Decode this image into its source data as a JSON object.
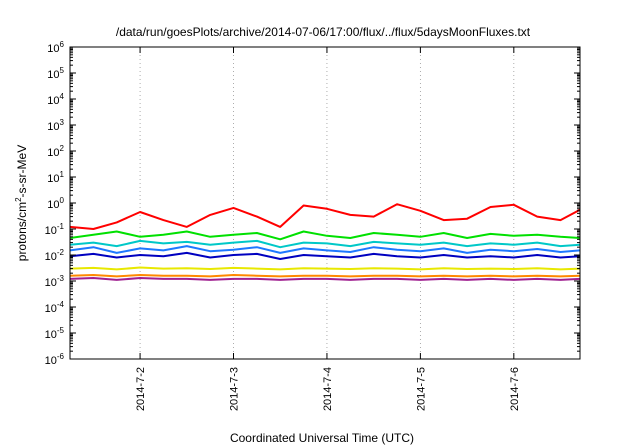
{
  "chart_data": {
    "type": "line",
    "title": "/data/run/goesPlots/archive/2014-07-06/17:00/flux/../flux/5daysMoonFluxes.txt",
    "xlabel": "Coordinated Universal Time (UTC)",
    "ylabel": "protons/cm²-s-sr-MeV",
    "ylabel_parts": {
      "pre": "protons/cm",
      "sup": "2",
      "post": "-s-sr-MeV"
    },
    "y_scale": "log",
    "ylim": [
      1e-06,
      1000000.0
    ],
    "y_ticks": [
      {
        "base": "10",
        "exp": "-6",
        "value": 1e-06
      },
      {
        "base": "10",
        "exp": "-5",
        "value": 1e-05
      },
      {
        "base": "10",
        "exp": "-4",
        "value": 0.0001
      },
      {
        "base": "10",
        "exp": "-3",
        "value": 0.001
      },
      {
        "base": "10",
        "exp": "-2",
        "value": 0.01
      },
      {
        "base": "10",
        "exp": "-1",
        "value": 0.1
      },
      {
        "base": "10",
        "exp": "0",
        "value": 1.0
      },
      {
        "base": "10",
        "exp": "1",
        "value": 10.0
      },
      {
        "base": "10",
        "exp": "2",
        "value": 100.0
      },
      {
        "base": "10",
        "exp": "3",
        "value": 1000.0
      },
      {
        "base": "10",
        "exp": "4",
        "value": 10000.0
      },
      {
        "base": "10",
        "exp": "5",
        "value": 100000.0
      },
      {
        "base": "10",
        "exp": "6",
        "value": 1000000.0
      }
    ],
    "xlim": [
      "2014-07-01T06:00",
      "2014-07-06T17:00"
    ],
    "x_ticks": [
      "2014-7-2",
      "2014-7-3",
      "2014-7-4",
      "2014-7-5",
      "2014-7-6"
    ],
    "grid": true,
    "x": [
      "2014-07-01T06:00",
      "2014-07-01T12:00",
      "2014-07-01T18:00",
      "2014-07-02T00:00",
      "2014-07-02T06:00",
      "2014-07-02T12:00",
      "2014-07-02T18:00",
      "2014-07-03T00:00",
      "2014-07-03T06:00",
      "2014-07-03T12:00",
      "2014-07-03T18:00",
      "2014-07-04T00:00",
      "2014-07-04T06:00",
      "2014-07-04T12:00",
      "2014-07-04T18:00",
      "2014-07-05T00:00",
      "2014-07-05T06:00",
      "2014-07-05T12:00",
      "2014-07-05T18:00",
      "2014-07-06T00:00",
      "2014-07-06T06:00",
      "2014-07-06T12:00",
      "2014-07-06T17:00"
    ],
    "series": [
      {
        "color": "#ff0000",
        "values": [
          0.12,
          0.1,
          0.18,
          0.45,
          0.22,
          0.12,
          0.35,
          0.65,
          0.3,
          0.12,
          0.8,
          0.6,
          0.35,
          0.3,
          0.9,
          0.5,
          0.22,
          0.25,
          0.7,
          0.85,
          0.3,
          0.22,
          0.55
        ]
      },
      {
        "color": "#00e000",
        "values": [
          0.045,
          0.06,
          0.08,
          0.05,
          0.06,
          0.08,
          0.05,
          0.06,
          0.07,
          0.04,
          0.08,
          0.055,
          0.045,
          0.07,
          0.06,
          0.05,
          0.07,
          0.045,
          0.065,
          0.055,
          0.06,
          0.05,
          0.045
        ]
      },
      {
        "color": "#00c8c8",
        "values": [
          0.025,
          0.03,
          0.022,
          0.035,
          0.028,
          0.032,
          0.025,
          0.03,
          0.035,
          0.02,
          0.03,
          0.028,
          0.022,
          0.032,
          0.028,
          0.025,
          0.03,
          0.022,
          0.028,
          0.025,
          0.03,
          0.022,
          0.025
        ]
      },
      {
        "color": "#1e78ff",
        "values": [
          0.015,
          0.02,
          0.012,
          0.018,
          0.015,
          0.022,
          0.014,
          0.016,
          0.02,
          0.012,
          0.018,
          0.015,
          0.013,
          0.02,
          0.016,
          0.014,
          0.018,
          0.012,
          0.016,
          0.014,
          0.017,
          0.013,
          0.015
        ]
      },
      {
        "color": "#0000c0",
        "values": [
          0.009,
          0.011,
          0.008,
          0.01,
          0.009,
          0.012,
          0.008,
          0.01,
          0.011,
          0.007,
          0.01,
          0.009,
          0.008,
          0.011,
          0.009,
          0.008,
          0.01,
          0.008,
          0.009,
          0.008,
          0.01,
          0.008,
          0.009
        ]
      },
      {
        "color": "#e8e800",
        "values": [
          0.003,
          0.0032,
          0.0028,
          0.0033,
          0.003,
          0.0031,
          0.0029,
          0.0032,
          0.003,
          0.0028,
          0.0031,
          0.003,
          0.0029,
          0.0031,
          0.003,
          0.0028,
          0.0031,
          0.0029,
          0.003,
          0.0029,
          0.0031,
          0.0028,
          0.003
        ]
      },
      {
        "color": "#ff8800",
        "values": [
          0.0016,
          0.0017,
          0.0015,
          0.0017,
          0.0016,
          0.0016,
          0.0015,
          0.0017,
          0.0016,
          0.0015,
          0.0016,
          0.0016,
          0.0015,
          0.0016,
          0.0016,
          0.0015,
          0.0016,
          0.0015,
          0.0016,
          0.0015,
          0.0016,
          0.0015,
          0.0016
        ]
      },
      {
        "color": "#a02090",
        "values": [
          0.0012,
          0.0013,
          0.0011,
          0.0013,
          0.0012,
          0.0012,
          0.0011,
          0.0012,
          0.0012,
          0.0011,
          0.0012,
          0.0012,
          0.0011,
          0.0012,
          0.0012,
          0.0011,
          0.0012,
          0.0011,
          0.0012,
          0.0011,
          0.0012,
          0.0011,
          0.0012
        ]
      }
    ]
  }
}
